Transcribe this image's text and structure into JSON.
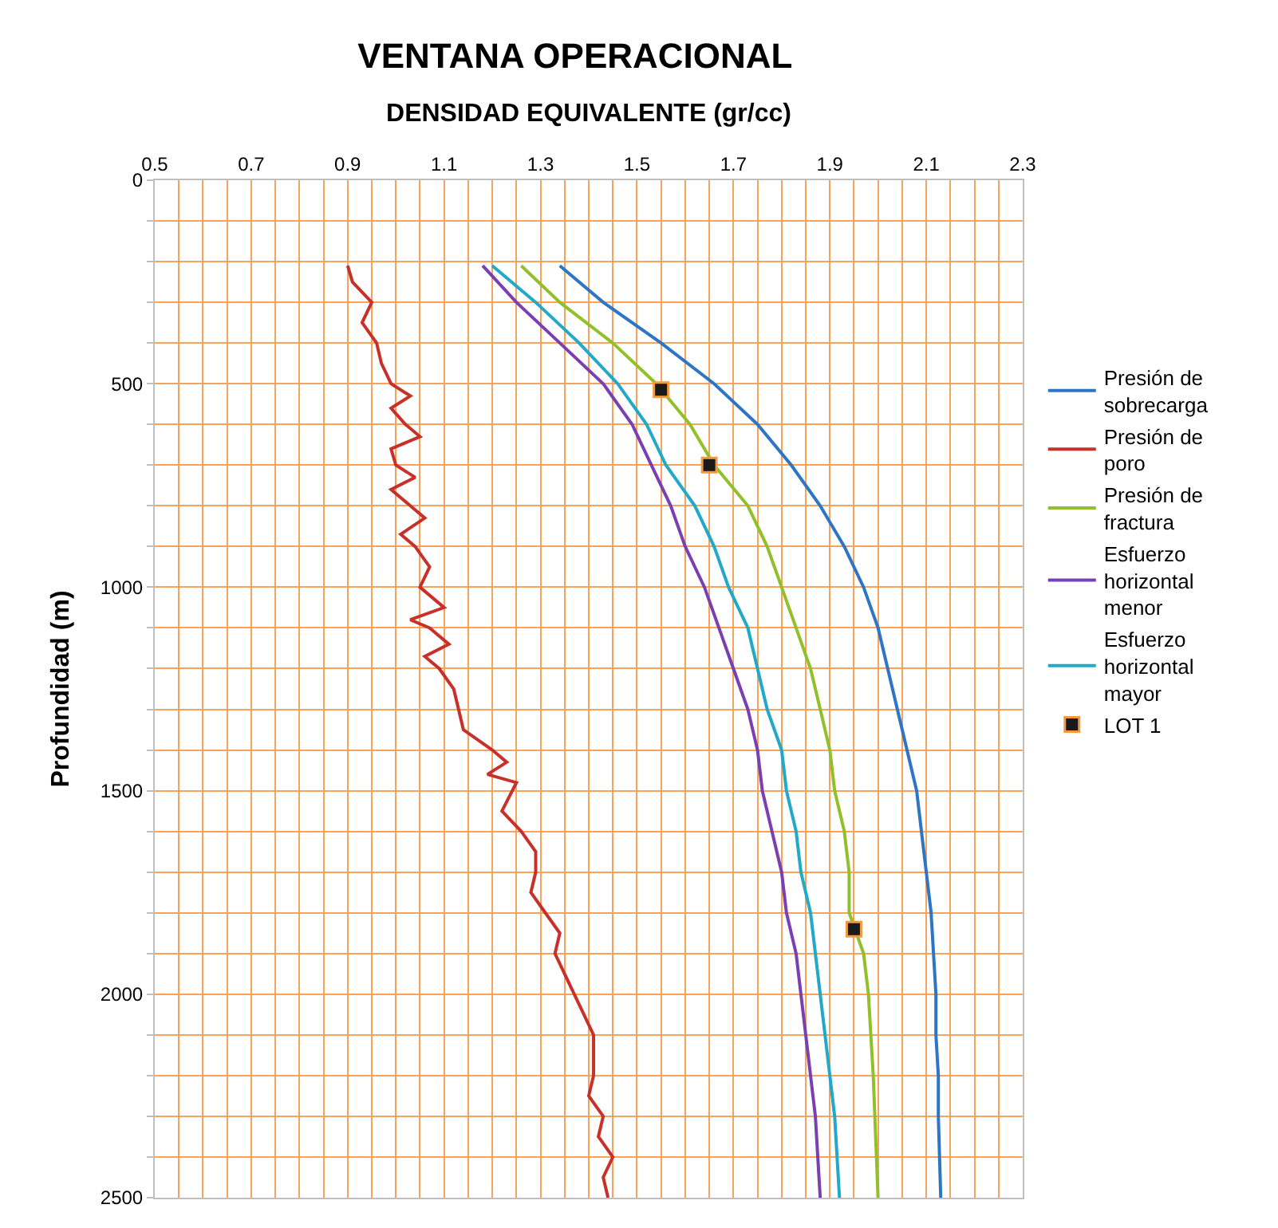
{
  "chart_data": {
    "type": "line",
    "title": "VENTANA OPERACIONAL",
    "xlabel": "DENSIDAD EQUIVALENTE (gr/cc)",
    "ylabel": "Profundidad (m)",
    "xlim": [
      0.5,
      2.3
    ],
    "ylim": [
      2500,
      0
    ],
    "xticks": [
      0.5,
      {
        "value": 0.55,
        "label": null
      },
      {
        "value": 0.6,
        "label": null
      },
      {
        "value": 0.65,
        "label": null
      },
      0.7,
      {
        "value": 0.75,
        "label": null
      },
      {
        "value": 0.8,
        "label": null
      },
      {
        "value": 0.85,
        "label": null
      },
      0.9,
      {
        "value": 0.95,
        "label": null
      },
      {
        "value": 1.0,
        "label": null
      },
      {
        "value": 1.05,
        "label": null
      },
      1.1,
      {
        "value": 1.15,
        "label": null
      },
      {
        "value": 1.2,
        "label": null
      },
      {
        "value": 1.25,
        "label": null
      },
      1.3,
      {
        "value": 1.35,
        "label": null
      },
      {
        "value": 1.4,
        "label": null
      },
      {
        "value": 1.45,
        "label": null
      },
      1.5,
      {
        "value": 1.55,
        "label": null
      },
      {
        "value": 1.6,
        "label": null
      },
      {
        "value": 1.65,
        "label": null
      },
      1.7,
      {
        "value": 1.75,
        "label": null
      },
      {
        "value": 1.8,
        "label": null
      },
      {
        "value": 1.85,
        "label": null
      },
      1.9,
      {
        "value": 1.95,
        "label": null
      },
      {
        "value": 2.0,
        "label": null
      },
      {
        "value": 2.05,
        "label": null
      },
      2.1,
      {
        "value": 2.15,
        "label": null
      },
      {
        "value": 2.2,
        "label": null
      },
      {
        "value": 2.25,
        "label": null
      },
      2.3
    ],
    "yticks": [
      0,
      {
        "value": 100,
        "label": null
      },
      {
        "value": 200,
        "label": null
      },
      {
        "value": 300,
        "label": null
      },
      {
        "value": 400,
        "label": null
      },
      500,
      {
        "value": 600,
        "label": null
      },
      {
        "value": 700,
        "label": null
      },
      {
        "value": 800,
        "label": null
      },
      {
        "value": 900,
        "label": null
      },
      1000,
      {
        "value": 1100,
        "label": null
      },
      {
        "value": 1200,
        "label": null
      },
      {
        "value": 1300,
        "label": null
      },
      {
        "value": 1400,
        "label": null
      },
      1500,
      {
        "value": 1600,
        "label": null
      },
      {
        "value": 1700,
        "label": null
      },
      {
        "value": 1800,
        "label": null
      },
      {
        "value": 1900,
        "label": null
      },
      2000,
      {
        "value": 2100,
        "label": null
      },
      {
        "value": 2200,
        "label": null
      },
      {
        "value": 2300,
        "label": null
      },
      {
        "value": 2400,
        "label": null
      },
      2500
    ],
    "grid": true,
    "legend": "right",
    "line_style": "solid",
    "marker": "none",
    "series": [
      {
        "name": "Presión de sobrecarga",
        "color": "#2e75c6",
        "x": [
          1.34,
          1.43,
          1.55,
          1.66,
          1.75,
          1.82,
          1.88,
          1.93,
          1.97,
          2.0,
          2.02,
          2.04,
          2.06,
          2.08,
          2.09,
          2.1,
          2.11,
          2.115,
          2.12,
          2.12,
          2.125,
          2.125,
          2.13
        ],
        "values": [
          210,
          300,
          400,
          500,
          600,
          700,
          800,
          900,
          1000,
          1100,
          1200,
          1300,
          1400,
          1500,
          1600,
          1700,
          1800,
          1900,
          2000,
          2100,
          2200,
          2300,
          2500
        ]
      },
      {
        "name": "Presión de poro",
        "color": "#c8312a",
        "x": [
          0.9,
          0.91,
          0.95,
          0.93,
          0.96,
          0.97,
          0.99,
          1.03,
          0.99,
          1.02,
          1.05,
          0.99,
          1.0,
          1.04,
          0.99,
          1.03,
          1.06,
          1.01,
          1.04,
          1.07,
          1.05,
          1.1,
          1.03,
          1.07,
          1.11,
          1.06,
          1.09,
          1.12,
          1.13,
          1.14,
          1.2,
          1.23,
          1.19,
          1.25,
          1.22,
          1.26,
          1.29,
          1.29,
          1.28,
          1.31,
          1.34,
          1.33,
          1.35,
          1.37,
          1.41,
          1.41,
          1.4,
          1.43,
          1.42,
          1.45,
          1.43,
          1.44
        ],
        "values": [
          210,
          250,
          300,
          350,
          400,
          450,
          500,
          530,
          560,
          600,
          630,
          660,
          700,
          730,
          760,
          800,
          830,
          870,
          900,
          950,
          1000,
          1050,
          1080,
          1100,
          1140,
          1170,
          1200,
          1250,
          1300,
          1350,
          1400,
          1430,
          1460,
          1480,
          1550,
          1600,
          1650,
          1700,
          1750,
          1800,
          1850,
          1900,
          1950,
          2000,
          2100,
          2200,
          2250,
          2300,
          2350,
          2400,
          2450,
          2500
        ]
      },
      {
        "name": "Presión de fractura",
        "color": "#92c02a",
        "x": [
          1.26,
          1.34,
          1.45,
          1.54,
          1.61,
          1.66,
          1.73,
          1.77,
          1.8,
          1.83,
          1.86,
          1.88,
          1.9,
          1.91,
          1.93,
          1.94,
          1.94,
          1.97,
          1.98,
          1.99,
          2.0
        ],
        "values": [
          210,
          300,
          400,
          500,
          600,
          700,
          800,
          900,
          1000,
          1100,
          1200,
          1300,
          1400,
          1500,
          1600,
          1700,
          1800,
          1900,
          2000,
          2200,
          2500
        ]
      },
      {
        "name": "Esfuerzo horizontal menor",
        "color": "#7a3fb0",
        "x": [
          1.18,
          1.25,
          1.34,
          1.43,
          1.49,
          1.53,
          1.57,
          1.6,
          1.64,
          1.67,
          1.7,
          1.73,
          1.75,
          1.76,
          1.78,
          1.8,
          1.81,
          1.83,
          1.84,
          1.86,
          1.87,
          1.88
        ],
        "values": [
          210,
          300,
          400,
          500,
          600,
          700,
          800,
          900,
          1000,
          1100,
          1200,
          1300,
          1400,
          1500,
          1600,
          1700,
          1800,
          1900,
          2000,
          2200,
          2300,
          2500
        ]
      },
      {
        "name": "Esfuerzo horizontal mayor",
        "color": "#22a8c8",
        "x": [
          1.2,
          1.29,
          1.38,
          1.46,
          1.52,
          1.56,
          1.62,
          1.66,
          1.69,
          1.73,
          1.75,
          1.77,
          1.8,
          1.81,
          1.83,
          1.84,
          1.86,
          1.87,
          1.88,
          1.9,
          1.91,
          1.92
        ],
        "values": [
          210,
          300,
          400,
          500,
          600,
          700,
          800,
          900,
          1000,
          1100,
          1200,
          1300,
          1400,
          1500,
          1600,
          1700,
          1800,
          1900,
          2000,
          2200,
          2300,
          2500
        ]
      },
      {
        "name": "LOT 1",
        "type": "scatter",
        "marker": "square",
        "color": "#1a1a1a",
        "x": [
          1.55,
          1.65,
          1.95
        ],
        "values": [
          515,
          700,
          1840
        ]
      }
    ]
  }
}
